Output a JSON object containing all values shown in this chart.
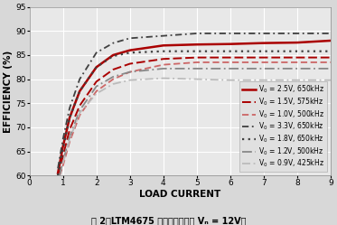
{
  "xlabel": "LOAD CURRENT",
  "ylabel": "EFFICIENCY (%)",
  "xlim": [
    0,
    9
  ],
  "ylim": [
    60,
    95
  ],
  "xticks": [
    0,
    1,
    2,
    3,
    4,
    5,
    6,
    7,
    8,
    9
  ],
  "yticks": [
    60,
    65,
    70,
    75,
    80,
    85,
    90,
    95
  ],
  "series": [
    {
      "label": "V0 = 2.5V, 650kHz",
      "color": "#aa0000",
      "linewidth": 1.8,
      "linestyle": "solid",
      "x": [
        0.85,
        1.0,
        1.2,
        1.5,
        2.0,
        2.5,
        3.0,
        4.0,
        5.0,
        6.0,
        7.0,
        8.0,
        9.0
      ],
      "y": [
        60.5,
        66.0,
        72.0,
        77.5,
        82.5,
        85.0,
        86.0,
        87.0,
        87.2,
        87.3,
        87.5,
        87.6,
        88.0
      ]
    },
    {
      "label": "V0 = 1.5V, 575kHz",
      "color": "#aa0000",
      "linewidth": 1.4,
      "linestyle": "dashed",
      "dashes": [
        5,
        2
      ],
      "x": [
        0.85,
        1.0,
        1.2,
        1.5,
        2.0,
        2.5,
        3.0,
        4.0,
        5.0,
        6.0,
        7.0,
        8.0,
        9.0
      ],
      "y": [
        60.0,
        64.0,
        69.5,
        74.5,
        79.5,
        82.0,
        83.2,
        84.2,
        84.5,
        84.5,
        84.5,
        84.5,
        84.5
      ]
    },
    {
      "label": "V0 = 1.0V, 500kHz",
      "color": "#cc6666",
      "linewidth": 1.3,
      "linestyle": "dashed",
      "dashes": [
        4,
        2
      ],
      "x": [
        0.9,
        1.0,
        1.2,
        1.5,
        2.0,
        2.5,
        3.0,
        4.0,
        5.0,
        6.0,
        7.0,
        8.0,
        9.0
      ],
      "y": [
        60.0,
        62.0,
        67.0,
        72.5,
        77.5,
        80.0,
        81.5,
        83.0,
        83.5,
        83.5,
        83.5,
        83.5,
        83.5
      ]
    },
    {
      "label": "V0 = 3.3V, 650kHz",
      "color": "#404040",
      "linewidth": 1.3,
      "linestyle": "dashdot",
      "dashes": [
        4,
        2,
        1,
        2
      ],
      "x": [
        0.85,
        1.0,
        1.2,
        1.5,
        2.0,
        2.5,
        3.0,
        4.0,
        5.0,
        6.0,
        7.0,
        8.0,
        9.0
      ],
      "y": [
        61.5,
        67.5,
        74.0,
        80.0,
        85.5,
        87.5,
        88.5,
        89.0,
        89.5,
        89.5,
        89.5,
        89.5,
        89.5
      ]
    },
    {
      "label": "V0 = 1.8V, 650kHz",
      "color": "#404040",
      "linewidth": 1.6,
      "linestyle": "dotted",
      "dashes": [
        1,
        2
      ],
      "x": [
        0.85,
        1.0,
        1.2,
        1.5,
        2.0,
        2.5,
        3.0,
        4.0,
        5.0,
        6.0,
        7.0,
        8.0,
        9.0
      ],
      "y": [
        60.0,
        65.5,
        72.0,
        77.5,
        82.5,
        84.8,
        85.5,
        85.8,
        85.8,
        85.8,
        85.8,
        85.8,
        85.8
      ]
    },
    {
      "label": "V0 = 1.2V, 500kHz",
      "color": "#888888",
      "linewidth": 1.3,
      "linestyle": "dashdot",
      "dashes": [
        6,
        2,
        1,
        2
      ],
      "x": [
        0.9,
        1.0,
        1.2,
        1.5,
        2.0,
        2.5,
        3.0,
        4.0,
        5.0,
        6.0,
        7.0,
        8.0,
        9.0
      ],
      "y": [
        60.0,
        63.0,
        68.0,
        73.5,
        78.5,
        80.5,
        81.5,
        82.2,
        82.2,
        82.2,
        82.2,
        82.2,
        82.2
      ]
    },
    {
      "label": "V0 = 0.9V, 425kHz",
      "color": "#bbbbbb",
      "linewidth": 1.3,
      "linestyle": "dashdot",
      "dashes": [
        5,
        2,
        1,
        2
      ],
      "x": [
        1.0,
        1.2,
        1.5,
        2.0,
        2.5,
        3.0,
        4.0,
        5.0,
        6.0,
        7.0,
        8.0,
        9.0
      ],
      "y": [
        62.5,
        67.5,
        73.0,
        77.0,
        79.0,
        79.8,
        80.2,
        80.0,
        79.8,
        79.8,
        79.8,
        79.8
      ]
    }
  ],
  "bg_color": "#e8e8e8",
  "fig_bg_color": "#d8d8d8",
  "grid_color": "#ffffff",
  "tick_fontsize": 6.5,
  "label_fontsize": 7.5
}
